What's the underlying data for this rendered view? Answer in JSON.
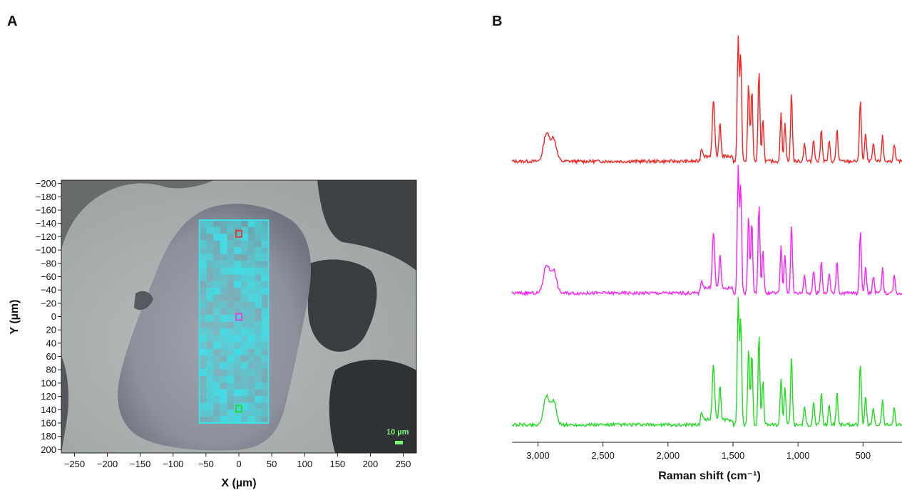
{
  "chart_data": [
    {
      "panel": "A",
      "type": "heatmap",
      "xlabel": "X (µm)",
      "ylabel": "Y (µm)",
      "xlim": [
        -270,
        270
      ],
      "ylim": [
        205,
        -205
      ],
      "x_ticks": [
        -250,
        -200,
        -150,
        -100,
        -50,
        0,
        50,
        100,
        150,
        200,
        250
      ],
      "y_ticks": [
        -200,
        -180,
        -160,
        -140,
        -120,
        -100,
        -80,
        -60,
        -40,
        -20,
        0,
        20,
        40,
        60,
        80,
        100,
        120,
        140,
        160,
        180,
        200
      ],
      "scan_region": {
        "x": [
          -60,
          45
        ],
        "y": [
          -145,
          160
        ],
        "color": "#3fe0e8"
      },
      "markers": [
        {
          "x": 0,
          "y": -125,
          "color": "#e0332b"
        },
        {
          "x": 0,
          "y": 0,
          "color": "#e040e0"
        },
        {
          "x": 0,
          "y": 138,
          "color": "#22dd22"
        }
      ],
      "scale_bar": {
        "label": "10 µm",
        "color": "#7CFC7C"
      }
    },
    {
      "panel": "B",
      "type": "line",
      "xlabel": "Raman shift (cm⁻¹)",
      "ylabel": "",
      "xlim": [
        3200,
        200
      ],
      "x_ticks": [
        3000,
        2500,
        2000,
        1500,
        1000,
        500
      ],
      "x_tick_labels": [
        "3,000",
        "2,500",
        "2,000",
        "1,500",
        "1,000",
        "500"
      ],
      "series": [
        {
          "color": "#ff2020",
          "offset": 2.0
        },
        {
          "color": "#ff20ff",
          "offset": 1.0
        },
        {
          "color": "#20dd20",
          "offset": 0.0
        }
      ],
      "peaks": [
        {
          "x": 2935,
          "h": 0.22
        },
        {
          "x": 2880,
          "h": 0.18
        },
        {
          "x": 1740,
          "h": 0.06
        },
        {
          "x": 1650,
          "h": 0.45
        },
        {
          "x": 1600,
          "h": 0.28
        },
        {
          "x": 1460,
          "h": 1.0
        },
        {
          "x": 1440,
          "h": 0.85
        },
        {
          "x": 1380,
          "h": 0.62
        },
        {
          "x": 1355,
          "h": 0.58
        },
        {
          "x": 1300,
          "h": 0.72
        },
        {
          "x": 1270,
          "h": 0.35
        },
        {
          "x": 1130,
          "h": 0.38
        },
        {
          "x": 1100,
          "h": 0.3
        },
        {
          "x": 1050,
          "h": 0.55
        },
        {
          "x": 950,
          "h": 0.15
        },
        {
          "x": 880,
          "h": 0.18
        },
        {
          "x": 820,
          "h": 0.26
        },
        {
          "x": 760,
          "h": 0.16
        },
        {
          "x": 700,
          "h": 0.26
        },
        {
          "x": 520,
          "h": 0.5
        },
        {
          "x": 480,
          "h": 0.22
        },
        {
          "x": 420,
          "h": 0.14
        },
        {
          "x": 350,
          "h": 0.2
        },
        {
          "x": 260,
          "h": 0.14
        }
      ]
    }
  ],
  "labels": {
    "panel_a": "A",
    "panel_b": "B"
  }
}
